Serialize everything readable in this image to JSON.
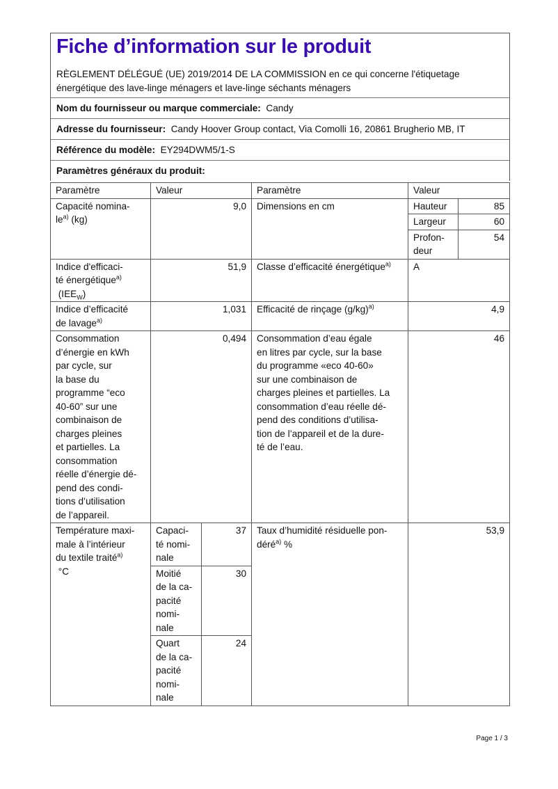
{
  "title": "Fiche d’information sur le produit",
  "regulation": "RÈGLEMENT DÉLÉGUÉ (UE) 2019/2014 DE LA COMMISSION en ce qui concerne l'étiquetage énergétique des lave-linge ménagers et lave-linge séchants ménagers",
  "supplier": {
    "label": "Nom du fournisseur ou marque commerciale:",
    "value": "Candy"
  },
  "address": {
    "label": "Adresse du fournisseur:",
    "value": "Candy Hoover Group contact, Via Comolli 16, 20861 Brugherio MB, IT"
  },
  "model": {
    "label": "Référence du modèle:",
    "value": "EY294DWM5/1-S"
  },
  "general": "Paramètres généraux du produit:",
  "table": {
    "headers": [
      "Paramètre",
      "Valeur",
      "Paramètre",
      "Valeur"
    ],
    "sup": "a)",
    "capacity": {
      "label": "Capacité nomina-\nle",
      "unit": " (kg)",
      "value": "9,0"
    },
    "dimensions": {
      "label": "Dimensions en cm",
      "items": [
        {
          "label": "Hauteur",
          "value": "85"
        },
        {
          "label": "Largeur",
          "value": "60"
        },
        {
          "label": "Profon-\ndeur",
          "value": "54"
        }
      ]
    },
    "eei": {
      "label": "Indice d'efficaci-\nté énergétique",
      "sym": "(IEE",
      "sub": "W",
      "close": ")",
      "value": "51,9"
    },
    "energy_class": {
      "label": "Classe d’efficacité énergétique",
      "value": "A"
    },
    "washing": {
      "label": "Indice d’efficacité\nde lavage",
      "value": "1,031"
    },
    "rinsing": {
      "label": "Efficacité de rinçage (g/kg)",
      "value": "4,9"
    },
    "energy_cons": {
      "label": "Consommation\nd’énergie en kWh\npar cycle, sur\nla base du\nprogramme “eco\n40-60” sur une\ncombinaison de\ncharges pleines\net partielles. La\nconsommation\nréelle d’énergie dé-\npend des condi-\ntions d’utilisation\nde l’appareil.",
      "value": "0,494"
    },
    "water_cons": {
      "label": "Consommation d’eau égale\nen litres par cycle, sur la base\ndu programme «eco 40-60»\nsur une combinaison de\ncharges pleines et partielles. La\nconsommation d’eau réelle dé-\npend des conditions d’utilisa-\ntion de l’appareil et de la dure-\nté de l’eau.",
      "value": "46"
    },
    "temperature": {
      "label": "Température maxi-\nmale à l’intérieur\ndu textile traité",
      "unit": "°C",
      "items": [
        {
          "label": "Capaci-\nté nomi-\nnale",
          "value": "37"
        },
        {
          "label": "Moitié\nde la ca-\npacité\nnomi-\nnale",
          "value": "30"
        },
        {
          "label": "Quart\nde la ca-\npacité\nnomi-\nnale",
          "value": "24"
        }
      ]
    },
    "moisture": {
      "label": "Taux d’humidité résiduelle pon-\ndéré",
      "unit": " %",
      "value": "53,9"
    }
  },
  "page": "Page 1 / 3"
}
